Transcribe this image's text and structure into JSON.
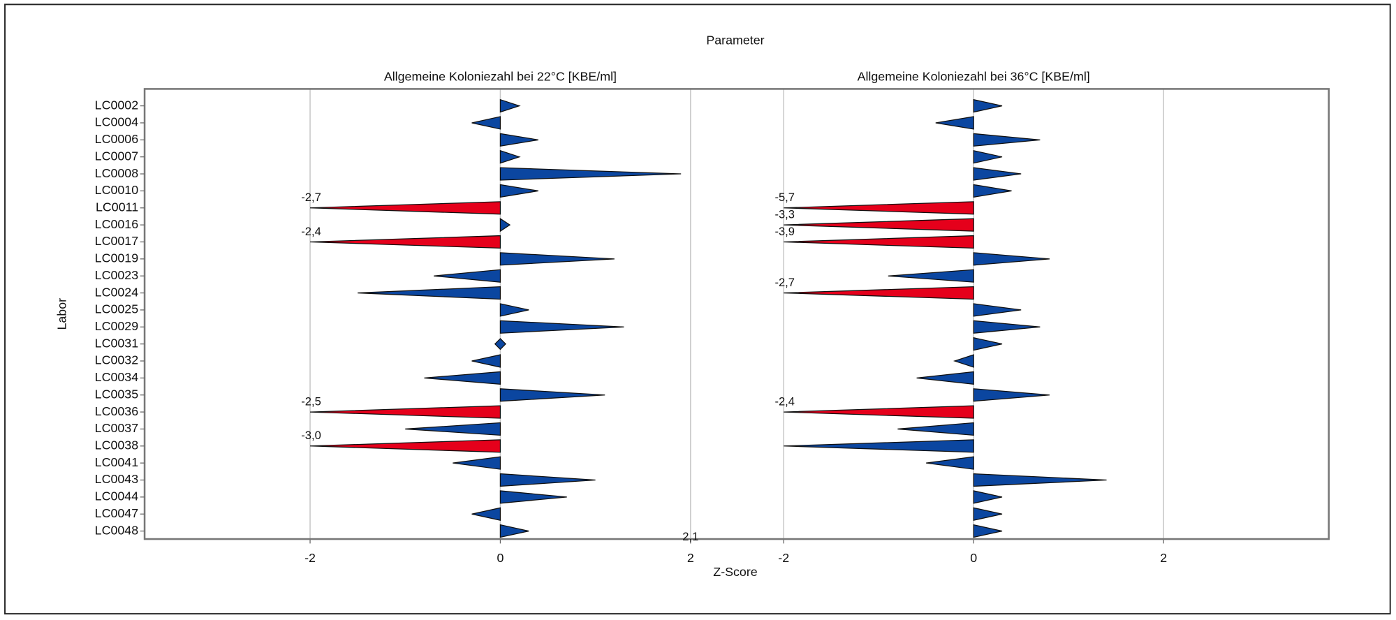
{
  "figure": {
    "title": "Parameter",
    "y_label": "Labor",
    "x_label": "Z-Score",
    "annotation": "2,1"
  },
  "categories": [
    "LC0002",
    "LC0004",
    "LC0006",
    "LC0007",
    "LC0008",
    "LC0010",
    "LC0011",
    "LC0016",
    "LC0017",
    "LC0019",
    "LC0023",
    "LC0024",
    "LC0025",
    "LC0029",
    "LC0031",
    "LC0032",
    "LC0034",
    "LC0035",
    "LC0036",
    "LC0037",
    "LC0038",
    "LC0041",
    "LC0043",
    "LC0044",
    "LC0047",
    "LC0048"
  ],
  "chart_data": [
    {
      "type": "bar",
      "title": "Allgemeine Koloniezahl bei 22°C [KBE/ml]",
      "values": [
        0.2,
        -0.3,
        0.4,
        0.2,
        1.9,
        0.4,
        -2.7,
        0.1,
        -2.4,
        1.2,
        -0.7,
        -1.5,
        0.3,
        1.3,
        0,
        -0.3,
        -0.8,
        1.1,
        -2.5,
        -1.0,
        -3.0,
        -0.5,
        1.0,
        0.7,
        -0.3,
        0.3
      ],
      "value_labels": [
        null,
        null,
        null,
        null,
        null,
        null,
        "-2,7",
        null,
        "-2,4",
        null,
        null,
        null,
        null,
        null,
        null,
        null,
        null,
        null,
        "-2,5",
        null,
        "-3,0",
        null,
        null,
        null,
        null,
        null
      ],
      "xlim": [
        -3.74,
        2.49
      ],
      "xticks": [
        -2,
        0,
        2
      ],
      "clip_min": -2,
      "color": "#0b46a0",
      "outlier_color": "#e5001b",
      "grid": true
    },
    {
      "type": "bar",
      "title": "Allgemeine Koloniezahl bei 36°C [KBE/ml]",
      "values": [
        0.3,
        -0.4,
        0.7,
        0.3,
        0.5,
        0.4,
        -5.7,
        -3.3,
        -3.9,
        0.8,
        -0.9,
        -2.7,
        0.5,
        0.7,
        0.3,
        -0.2,
        -0.6,
        0.8,
        -2.4,
        -0.8,
        -2.0,
        -0.5,
        1.4,
        0.3,
        0.3,
        0.3
      ],
      "value_labels": [
        null,
        null,
        null,
        null,
        null,
        null,
        "-5,7",
        "-3,3",
        "-3,9",
        null,
        null,
        "-2,7",
        null,
        null,
        null,
        null,
        null,
        null,
        "-2,4",
        null,
        null,
        null,
        null,
        null,
        null,
        null
      ],
      "xlim": [
        -2.49,
        3.74
      ],
      "xticks": [
        -2,
        0,
        2
      ],
      "clip_min": -2,
      "color": "#0b46a0",
      "outlier_color": "#e5001b",
      "grid": true
    }
  ]
}
